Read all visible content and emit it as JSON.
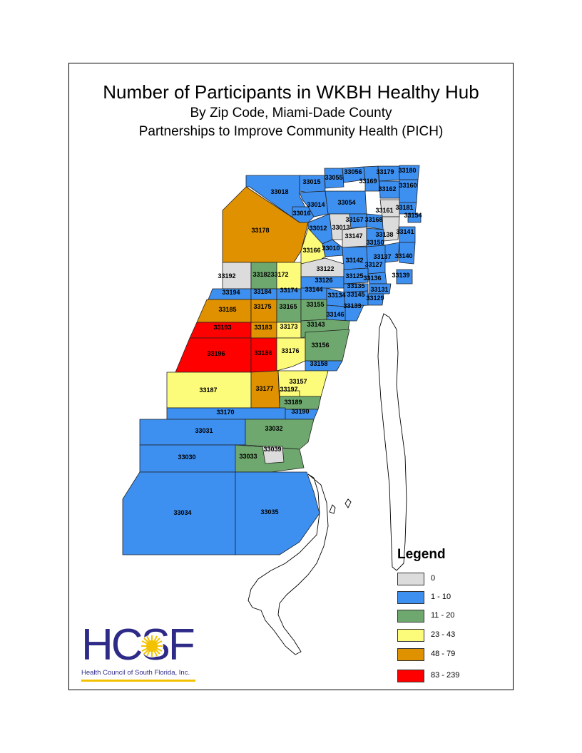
{
  "title": "Number of Participants in WKBH Healthy Hub",
  "subtitle1": "By Zip Code, Miami-Dade County",
  "subtitle2": "Partnerships to Improve Community Health (PICH)",
  "legend": {
    "title": "Legend",
    "items": [
      {
        "label": "0",
        "color": "#dcdcdc"
      },
      {
        "label": "1 - 10",
        "color": "#3d8ff0"
      },
      {
        "label": "11 - 20",
        "color": "#6ea86e"
      },
      {
        "label": "23 - 43",
        "color": "#fdfb7a"
      },
      {
        "label": "48 - 79",
        "color": "#df9100"
      },
      {
        "label": "83 - 239",
        "color": "#ff0000"
      }
    ]
  },
  "logo": {
    "letters": "HCSF",
    "tagline": "Health Council of South Florida, Inc."
  },
  "zip_codes": [
    {
      "code": "33018",
      "class": "1 - 10"
    },
    {
      "code": "33015",
      "class": "1 - 10"
    },
    {
      "code": "33055",
      "class": "1 - 10"
    },
    {
      "code": "33056",
      "class": "1 - 10"
    },
    {
      "code": "33169",
      "class": "1 - 10"
    },
    {
      "code": "33179",
      "class": "1 - 10"
    },
    {
      "code": "33180",
      "class": "1 - 10"
    },
    {
      "code": "33162",
      "class": "1 - 10"
    },
    {
      "code": "33160",
      "class": "1 - 10"
    },
    {
      "code": "33014",
      "class": "1 - 10"
    },
    {
      "code": "33054",
      "class": "1 - 10"
    },
    {
      "code": "33016",
      "class": "1 - 10"
    },
    {
      "code": "33161",
      "class": "0"
    },
    {
      "code": "33181",
      "class": "1 - 10"
    },
    {
      "code": "33154",
      "class": "1 - 10"
    },
    {
      "code": "33178",
      "class": "48 - 79"
    },
    {
      "code": "33012",
      "class": "1 - 10"
    },
    {
      "code": "33013",
      "class": "0"
    },
    {
      "code": "33167",
      "class": "1 - 10"
    },
    {
      "code": "33168",
      "class": "1 - 10"
    },
    {
      "code": "33147",
      "class": "0"
    },
    {
      "code": "33138",
      "class": "0"
    },
    {
      "code": "33141",
      "class": "1 - 10"
    },
    {
      "code": "33150",
      "class": "1 - 10"
    },
    {
      "code": "33010",
      "class": "1 - 10"
    },
    {
      "code": "33166",
      "class": "23 - 43"
    },
    {
      "code": "33142",
      "class": "1 - 10"
    },
    {
      "code": "33137",
      "class": "1 - 10"
    },
    {
      "code": "33140",
      "class": "1 - 10"
    },
    {
      "code": "33127",
      "class": "1 - 10"
    },
    {
      "code": "33122",
      "class": "0"
    },
    {
      "code": "33192",
      "class": "0"
    },
    {
      "code": "33182",
      "class": "11 - 20"
    },
    {
      "code": "33172",
      "class": "23 - 43"
    },
    {
      "code": "33126",
      "class": "1 - 10"
    },
    {
      "code": "33125",
      "class": "1 - 10"
    },
    {
      "code": "33139",
      "class": "1 - 10"
    },
    {
      "code": "33136",
      "class": "1 - 10"
    },
    {
      "code": "33135",
      "class": "1 - 10"
    },
    {
      "code": "33131",
      "class": "1 - 10"
    },
    {
      "code": "33194",
      "class": "1 - 10"
    },
    {
      "code": "33184",
      "class": "1 - 10"
    },
    {
      "code": "33174",
      "class": "1 - 10"
    },
    {
      "code": "33144",
      "class": "1 - 10"
    },
    {
      "code": "33134",
      "class": "1 - 10"
    },
    {
      "code": "33145",
      "class": "1 - 10"
    },
    {
      "code": "33129",
      "class": "1 - 10"
    },
    {
      "code": "33185",
      "class": "48 - 79"
    },
    {
      "code": "33175",
      "class": "48 - 79"
    },
    {
      "code": "33165",
      "class": "11 - 20"
    },
    {
      "code": "33155",
      "class": "11 - 20"
    },
    {
      "code": "33133",
      "class": "1 - 10"
    },
    {
      "code": "33146",
      "class": "1 - 10"
    },
    {
      "code": "33193",
      "class": "83 - 239"
    },
    {
      "code": "33183",
      "class": "48 - 79"
    },
    {
      "code": "33173",
      "class": "23 - 43"
    },
    {
      "code": "33143",
      "class": "11 - 20"
    },
    {
      "code": "33196",
      "class": "83 - 239"
    },
    {
      "code": "33186",
      "class": "83 - 239"
    },
    {
      "code": "33176",
      "class": "23 - 43"
    },
    {
      "code": "33156",
      "class": "11 - 20"
    },
    {
      "code": "33158",
      "class": "1 - 10"
    },
    {
      "code": "33187",
      "class": "23 - 43"
    },
    {
      "code": "33177",
      "class": "48 - 79"
    },
    {
      "code": "33157",
      "class": "23 - 43"
    },
    {
      "code": "33197",
      "class": "23 - 43"
    },
    {
      "code": "33189",
      "class": "11 - 20"
    },
    {
      "code": "33170",
      "class": "1 - 10"
    },
    {
      "code": "33190",
      "class": "1 - 10"
    },
    {
      "code": "33031",
      "class": "1 - 10"
    },
    {
      "code": "33032",
      "class": "11 - 20"
    },
    {
      "code": "33030",
      "class": "1 - 10"
    },
    {
      "code": "33033",
      "class": "11 - 20"
    },
    {
      "code": "33039",
      "class": "0"
    },
    {
      "code": "33034",
      "class": "1 - 10"
    },
    {
      "code": "33035",
      "class": "1 - 10"
    }
  ]
}
